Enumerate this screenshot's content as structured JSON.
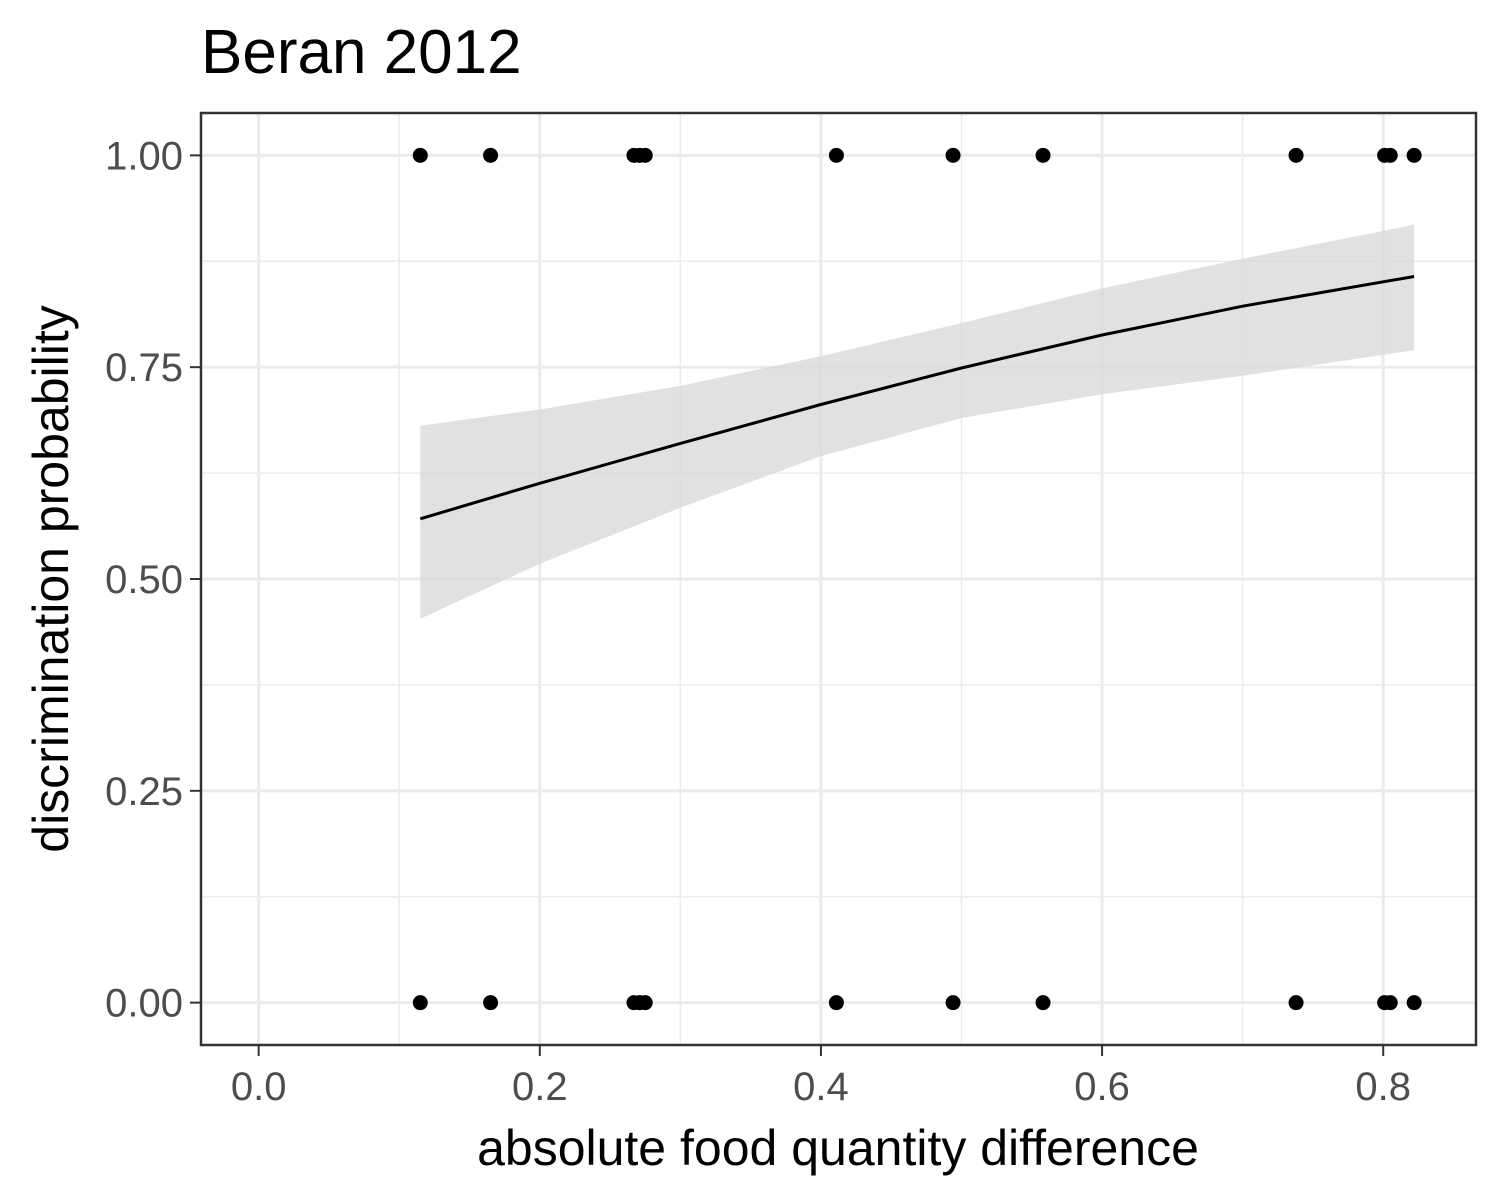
{
  "chart_data": {
    "type": "scatter",
    "title": "Beran 2012",
    "xlabel": "absolute food quantity difference",
    "ylabel": "discrimination probability",
    "xlim": [
      -0.041,
      0.866
    ],
    "ylim": [
      -0.05,
      1.05
    ],
    "x_ticks": [
      0.0,
      0.2,
      0.4,
      0.6,
      0.8
    ],
    "x_tick_labels": [
      "0.0",
      "0.2",
      "0.4",
      "0.6",
      "0.8"
    ],
    "y_ticks": [
      0.0,
      0.25,
      0.5,
      0.75,
      1.0
    ],
    "y_tick_labels": [
      "0.00",
      "0.25",
      "0.50",
      "0.75",
      "1.00"
    ],
    "x_minor_ticks": [
      0.1,
      0.3,
      0.5,
      0.7
    ],
    "y_minor_ticks": [
      0.125,
      0.375,
      0.625,
      0.875
    ],
    "grid": true,
    "points": {
      "x": [
        0.115,
        0.165,
        0.267,
        0.271,
        0.275,
        0.411,
        0.494,
        0.558,
        0.738,
        0.801,
        0.805,
        0.822,
        0.115,
        0.165,
        0.267,
        0.271,
        0.275,
        0.411,
        0.494,
        0.558,
        0.738,
        0.801,
        0.805,
        0.822
      ],
      "y": [
        1,
        1,
        1,
        1,
        1,
        1,
        1,
        1,
        1,
        1,
        1,
        1,
        0,
        0,
        0,
        0,
        0,
        0,
        0,
        0,
        0,
        0,
        0,
        0
      ],
      "color": "#000000"
    },
    "fit_line": {
      "x": [
        0.115,
        0.2,
        0.3,
        0.4,
        0.5,
        0.6,
        0.7,
        0.822
      ],
      "y": [
        0.571,
        0.613,
        0.66,
        0.706,
        0.749,
        0.788,
        0.822,
        0.857
      ],
      "color": "#000000"
    },
    "confidence_band": {
      "x": [
        0.115,
        0.2,
        0.3,
        0.4,
        0.5,
        0.6,
        0.7,
        0.822
      ],
      "lower": [
        0.453,
        0.518,
        0.584,
        0.645,
        0.69,
        0.718,
        0.74,
        0.77
      ],
      "upper": [
        0.681,
        0.7,
        0.728,
        0.763,
        0.802,
        0.843,
        0.878,
        0.918
      ],
      "color": "#d9d9d9"
    },
    "panel_background": "#ffffff",
    "grid_color": "#ebebeb"
  }
}
